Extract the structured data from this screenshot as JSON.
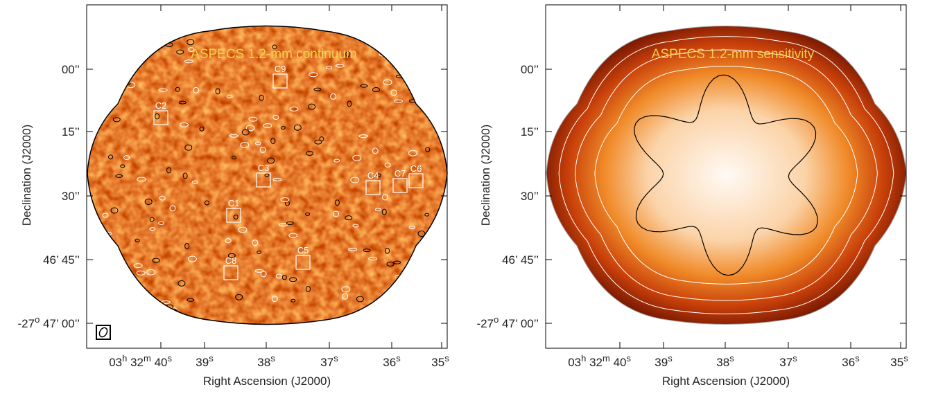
{
  "panels": [
    {
      "title": "ASPECS 1.2-mm continuum",
      "x_label": "Right Ascension (J2000)",
      "y_label": "Declination (J2000)",
      "x_ticks": [
        [
          [
            "03",
            "h"
          ],
          [
            " 32",
            "m"
          ],
          [
            " 40",
            "s"
          ]
        ],
        [
          [
            "39",
            "s"
          ]
        ],
        [
          [
            "38",
            "s"
          ]
        ],
        [
          [
            "37",
            "s"
          ]
        ],
        [
          [
            "36",
            "s"
          ]
        ],
        [
          [
            "35",
            "s"
          ]
        ]
      ],
      "y_ticks": [
        [
          [
            "00’’"
          ]
        ],
        [
          [
            "15’’"
          ]
        ],
        [
          [
            "30’’"
          ]
        ],
        [
          [
            "46’ 45’’"
          ]
        ],
        [
          [
            "-27",
            "o"
          ],
          [
            " 47’ 00’’"
          ]
        ]
      ],
      "sources": [
        "C1",
        "C2",
        "C3",
        "C4",
        "C5",
        "C6",
        "C7",
        "C8",
        "C9"
      ]
    },
    {
      "title": "ASPECS 1.2-mm sensitivity",
      "x_label": "Right Ascension (J2000)",
      "y_label": "Declination (J2000)",
      "x_ticks": [
        [
          [
            "03",
            "h"
          ],
          [
            " 32",
            "m"
          ],
          [
            " 40",
            "s"
          ]
        ],
        [
          [
            "39",
            "s"
          ]
        ],
        [
          [
            "38",
            "s"
          ]
        ],
        [
          [
            "37",
            "s"
          ]
        ],
        [
          [
            "36",
            "s"
          ]
        ],
        [
          [
            "35",
            "s"
          ]
        ]
      ],
      "y_ticks": [
        [
          [
            "00’’"
          ]
        ],
        [
          [
            "15’’"
          ]
        ],
        [
          [
            "30’’"
          ]
        ],
        [
          [
            "46’ 45’’"
          ]
        ],
        [
          [
            "-27",
            "o"
          ],
          [
            " 47’ 00’’"
          ]
        ]
      ],
      "sources": []
    }
  ]
}
